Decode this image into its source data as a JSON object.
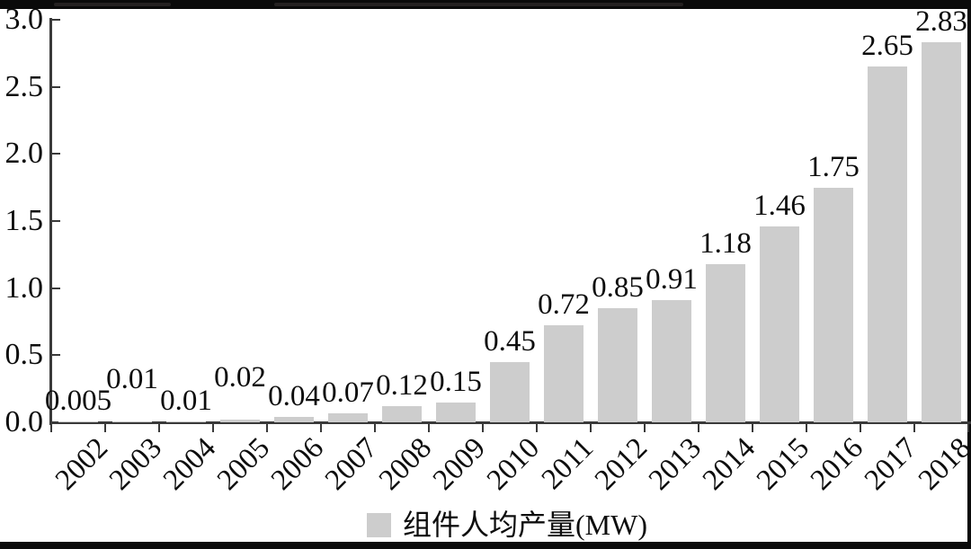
{
  "frame": {
    "background": "#ffffff",
    "crop_bar_color": "#0a0a0a"
  },
  "chart_data": {
    "type": "bar",
    "title": "",
    "xlabel": "",
    "ylabel": "",
    "categories": [
      "2002",
      "2003",
      "2004",
      "2005",
      "2006",
      "2007",
      "2008",
      "2009",
      "2010",
      "2011",
      "2012",
      "2013",
      "2014",
      "2015",
      "2016",
      "2017",
      "2018"
    ],
    "values": [
      0.005,
      0.01,
      0.01,
      0.02,
      0.04,
      0.07,
      0.12,
      0.15,
      0.45,
      0.72,
      0.85,
      0.91,
      1.18,
      1.46,
      1.75,
      2.65,
      2.83
    ],
    "value_labels": [
      "0.005",
      "0.01",
      "0.01",
      "0.02",
      "0.04",
      "0.07",
      "0.12",
      "0.15",
      "0.45",
      "0.72",
      "0.85",
      "0.91",
      "1.18",
      "1.46",
      "1.75",
      "2.65",
      "2.83"
    ],
    "series_name": "组件人均产量(MW)",
    "ylim": [
      0.0,
      3.0
    ],
    "yticks": [
      "0.0",
      "0.5",
      "1.0",
      "1.5",
      "2.0",
      "2.5",
      "3.0"
    ],
    "grid": false,
    "legend_position": "bottom-center",
    "bar_color": "#cdcdcd",
    "axis_color": "#3a3a3a",
    "text_color": "#0d0d0d",
    "x_tick_style": "outward-at-category-boundaries",
    "y_tick_style": "inward",
    "x_label_rotation_deg": -45
  }
}
